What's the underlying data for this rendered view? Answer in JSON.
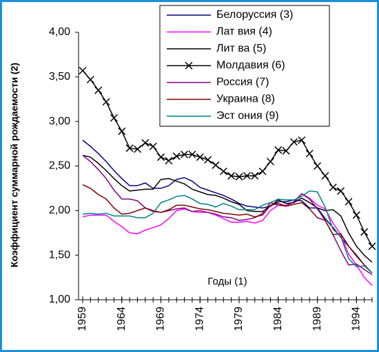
{
  "chart_data": {
    "type": "line",
    "y_label": "Коэффициент суммарной рождаемости (2)",
    "x_label": "Годы (1)",
    "x": [
      1959,
      1960,
      1961,
      1962,
      1963,
      1964,
      1965,
      1966,
      1967,
      1968,
      1969,
      1970,
      1971,
      1972,
      1973,
      1974,
      1975,
      1976,
      1977,
      1978,
      1979,
      1980,
      1981,
      1982,
      1983,
      1984,
      1985,
      1986,
      1987,
      1988,
      1989,
      1990,
      1991,
      1992,
      1993,
      1994,
      1995,
      1996
    ],
    "xlim": [
      1959,
      1996
    ],
    "xticks": [
      1959,
      1964,
      1969,
      1974,
      1979,
      1984,
      1989,
      1994
    ],
    "ylim": [
      1,
      4
    ],
    "yticks": [
      {
        "value": 1,
        "label": "1,00"
      },
      {
        "value": 1.5,
        "label": "1,50"
      },
      {
        "value": 2,
        "label": "2,00"
      },
      {
        "value": 2.5,
        "label": "2,50"
      },
      {
        "value": 3,
        "label": "3,00"
      },
      {
        "value": 3.5,
        "label": "3,50"
      },
      {
        "value": 4,
        "label": "4,00"
      }
    ],
    "legend": "top-right",
    "series": [
      {
        "name": "Белоруссия (3)",
        "color": "#000080",
        "values": [
          2.79,
          2.72,
          2.64,
          2.55,
          2.45,
          2.36,
          2.28,
          2.28,
          2.31,
          2.25,
          2.25,
          2.28,
          2.35,
          2.37,
          2.33,
          2.26,
          2.23,
          2.2,
          2.17,
          2.13,
          2.08,
          2.05,
          2.04,
          2.03,
          2.05,
          2.1,
          2.1,
          2.12,
          2.11,
          2.03,
          2.03,
          1.91,
          1.81,
          1.7,
          1.6,
          1.5,
          1.39,
          1.3
        ]
      },
      {
        "name": "Лат вия (4)",
        "color": "#ff00ff",
        "values": [
          1.93,
          1.95,
          1.95,
          1.95,
          1.88,
          1.82,
          1.75,
          1.74,
          1.78,
          1.81,
          1.84,
          1.91,
          2.0,
          2.02,
          1.99,
          1.98,
          1.98,
          1.95,
          1.91,
          1.87,
          1.87,
          1.88,
          1.86,
          1.89,
          2.0,
          2.06,
          2.06,
          2.09,
          2.19,
          2.14,
          2.06,
          2.02,
          1.86,
          1.73,
          1.51,
          1.39,
          1.25,
          1.16
        ]
      },
      {
        "name": "Лит ва (5)",
        "color": "#000000",
        "values": [
          2.62,
          2.6,
          2.53,
          2.45,
          2.36,
          2.28,
          2.22,
          2.23,
          2.24,
          2.24,
          2.35,
          2.36,
          2.33,
          2.3,
          2.24,
          2.21,
          2.18,
          2.17,
          2.14,
          2.1,
          2.07,
          2.0,
          1.99,
          1.99,
          2.05,
          2.12,
          2.08,
          2.09,
          2.14,
          2.09,
          2.03,
          2.0,
          2.01,
          1.94,
          1.75,
          1.6,
          1.5,
          1.42
        ]
      },
      {
        "name": "Молдавия (6)",
        "color": "#000000",
        "marker": "x",
        "values": [
          3.57,
          3.47,
          3.35,
          3.22,
          3.04,
          2.89,
          2.7,
          2.69,
          2.76,
          2.72,
          2.6,
          2.56,
          2.61,
          2.63,
          2.63,
          2.6,
          2.57,
          2.51,
          2.44,
          2.39,
          2.38,
          2.39,
          2.39,
          2.44,
          2.55,
          2.68,
          2.67,
          2.77,
          2.79,
          2.64,
          2.5,
          2.39,
          2.26,
          2.22,
          2.1,
          1.95,
          1.76,
          1.6
        ]
      },
      {
        "name": "Россия (7)",
        "color": "#800080",
        "values": [
          2.62,
          2.55,
          2.46,
          2.36,
          2.23,
          2.13,
          2.13,
          2.11,
          2.03,
          1.99,
          1.98,
          2.0,
          2.02,
          2.03,
          1.99,
          2.0,
          1.98,
          1.96,
          1.93,
          1.92,
          1.89,
          1.9,
          1.92,
          1.97,
          2.09,
          2.06,
          2.05,
          2.1,
          2.19,
          2.13,
          2.02,
          1.89,
          1.73,
          1.55,
          1.39,
          1.4,
          1.34,
          1.28
        ]
      },
      {
        "name": "Украина (8)",
        "color": "#800000",
        "values": [
          2.29,
          2.25,
          2.18,
          2.13,
          2.03,
          1.96,
          1.97,
          2.0,
          2.03,
          2.0,
          1.98,
          2.01,
          2.06,
          2.06,
          2.04,
          2.02,
          2.01,
          1.99,
          1.97,
          1.96,
          1.95,
          1.96,
          1.93,
          1.95,
          2.06,
          2.08,
          2.05,
          2.07,
          2.09,
          2.02,
          1.92,
          1.89,
          1.73,
          1.74,
          1.6,
          1.49,
          1.39,
          1.3
        ]
      },
      {
        "name": "Эст ония (9)",
        "color": "#008080",
        "values": [
          1.96,
          1.97,
          1.96,
          1.97,
          1.94,
          1.94,
          1.94,
          1.92,
          1.92,
          1.97,
          2.09,
          2.12,
          2.16,
          2.17,
          2.13,
          2.08,
          2.07,
          2.04,
          2.08,
          2.05,
          2.01,
          2.01,
          2.01,
          2.06,
          2.09,
          2.13,
          2.12,
          2.12,
          2.16,
          2.22,
          2.21,
          2.04,
          1.79,
          1.71,
          1.46,
          1.37,
          1.38,
          1.3
        ]
      }
    ]
  }
}
